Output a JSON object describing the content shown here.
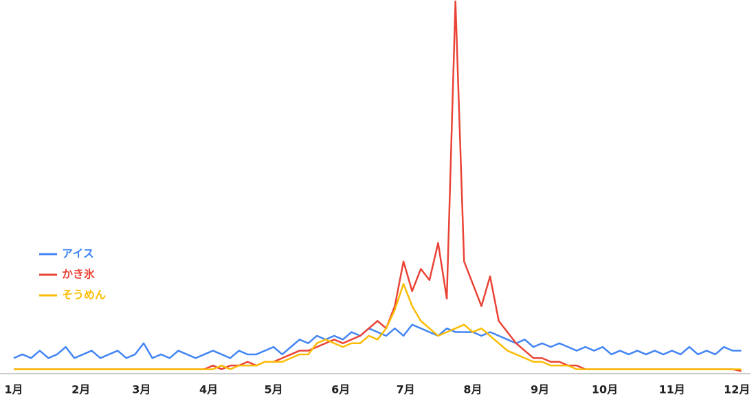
{
  "chart_data": {
    "type": "line",
    "x": [
      1,
      5,
      9,
      13,
      17,
      21,
      25,
      29,
      33,
      37,
      41,
      45,
      49,
      53,
      57,
      61,
      65,
      69,
      73,
      77,
      81,
      85,
      89,
      93,
      97,
      101,
      105,
      109,
      113,
      117,
      121,
      125,
      129,
      133,
      137,
      141,
      145,
      149,
      153,
      157,
      161,
      165,
      169,
      173,
      177,
      181,
      185,
      189,
      193,
      197,
      201,
      205,
      209,
      213,
      217,
      221,
      225,
      229,
      233,
      237,
      241,
      245,
      249,
      253,
      257,
      261,
      265,
      269,
      273,
      277,
      281,
      285,
      289,
      293,
      297,
      301,
      305,
      309,
      313,
      317,
      321,
      325,
      329,
      333,
      337
    ],
    "series": [
      {
        "name": "アイス",
        "color": "#4285f4",
        "values": [
          4,
          5,
          4,
          6,
          4,
          5,
          7,
          4,
          5,
          6,
          4,
          5,
          6,
          4,
          5,
          8,
          4,
          5,
          4,
          6,
          5,
          4,
          5,
          6,
          5,
          4,
          6,
          5,
          5,
          6,
          7,
          5,
          7,
          9,
          8,
          10,
          9,
          10,
          9,
          11,
          10,
          12,
          11,
          10,
          12,
          10,
          13,
          12,
          11,
          10,
          12,
          11,
          11,
          11,
          10,
          11,
          10,
          9,
          8,
          9,
          7,
          8,
          7,
          8,
          7,
          6,
          7,
          6,
          7,
          5,
          6,
          5,
          6,
          5,
          6,
          5,
          6,
          5,
          7,
          5,
          6,
          5,
          7,
          6,
          6
        ]
      },
      {
        "name": "かき氷",
        "color": "#ea4335",
        "values": [
          1,
          1,
          1,
          1,
          1,
          1,
          1,
          1,
          1,
          1,
          1,
          1,
          1,
          1,
          1,
          1,
          1,
          1,
          1,
          1,
          1,
          1,
          1,
          2,
          1,
          2,
          2,
          3,
          2,
          3,
          3,
          4,
          5,
          6,
          6,
          7,
          8,
          9,
          8,
          9,
          10,
          12,
          14,
          12,
          18,
          30,
          22,
          28,
          25,
          35,
          20,
          100,
          30,
          24,
          18,
          26,
          14,
          11,
          8,
          6,
          4,
          4,
          3,
          3,
          2,
          2,
          1,
          1,
          1,
          1,
          1,
          1,
          1,
          1,
          1,
          1,
          1,
          1,
          1,
          1,
          1,
          1,
          1,
          1,
          0.5
        ]
      },
      {
        "name": "そうめん",
        "color": "#fbbc04",
        "values": [
          1,
          1,
          1,
          1,
          1,
          1,
          1,
          1,
          1,
          1,
          1,
          1,
          1,
          1,
          1,
          1,
          1,
          1,
          1,
          1,
          1,
          1,
          1,
          1,
          2,
          1,
          2,
          2,
          2,
          3,
          3,
          3,
          4,
          5,
          5,
          8,
          9,
          8,
          7,
          8,
          8,
          10,
          9,
          12,
          17,
          24,
          18,
          14,
          12,
          10,
          11,
          12,
          13,
          11,
          12,
          10,
          8,
          6,
          5,
          4,
          3,
          3,
          2,
          2,
          2,
          1,
          1,
          1,
          1,
          1,
          1,
          1,
          1,
          1,
          1,
          1,
          1,
          1,
          1,
          1,
          1,
          1,
          1,
          1,
          1
        ]
      }
    ],
    "xlim": [
      1,
      340
    ],
    "xticks": [
      {
        "value": 1,
        "label": "1月"
      },
      {
        "value": 32,
        "label": "2月"
      },
      {
        "value": 60,
        "label": "3月"
      },
      {
        "value": 91,
        "label": "4月"
      },
      {
        "value": 121,
        "label": "5月"
      },
      {
        "value": 152,
        "label": "6月"
      },
      {
        "value": 182,
        "label": "7月"
      },
      {
        "value": 213,
        "label": "8月"
      },
      {
        "value": 244,
        "label": "9月"
      },
      {
        "value": 274,
        "label": "10月"
      },
      {
        "value": 305,
        "label": "11月"
      },
      {
        "value": 335,
        "label": "12月"
      }
    ],
    "ylim": [
      0,
      100
    ],
    "legend": "left"
  }
}
